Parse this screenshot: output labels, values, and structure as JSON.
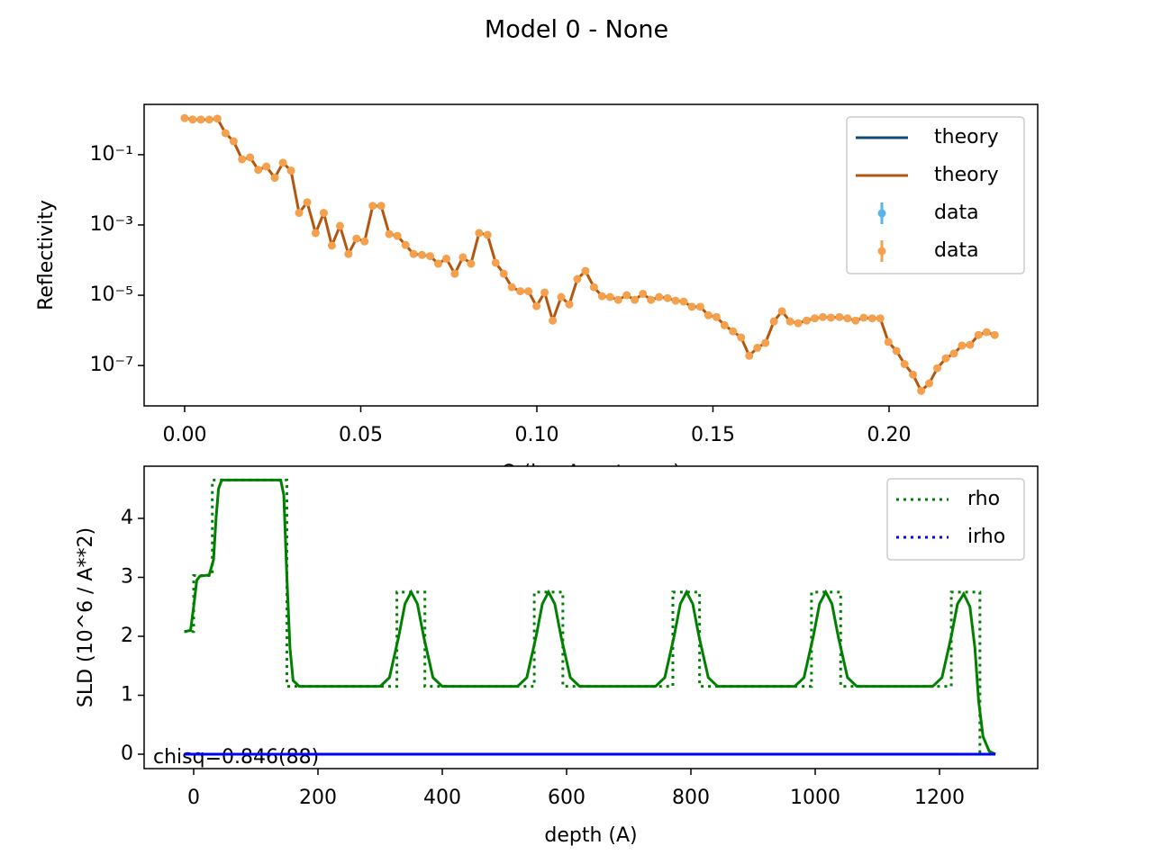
{
  "title": "Model 0 - None",
  "chart_data": [
    {
      "type": "reflectivity",
      "xlabel": "Q (inv Angstroms)",
      "ylabel": "Reflectivity",
      "log_y": true,
      "xlim": [
        -0.0115,
        0.2422
      ],
      "ylim": [
        2.7,
        7.1e-09
      ],
      "xticks": [
        {
          "value": 0,
          "label": "0.00"
        },
        0.05,
        {
          "value": 0.1,
          "label": "0.10"
        },
        0.15,
        {
          "value": 0.2,
          "label": "0.20"
        }
      ],
      "yticks": [
        {
          "value": 0.1,
          "label": "10⁻¹"
        },
        {
          "value": 0.001,
          "label": "10⁻³"
        },
        {
          "value": 1e-05,
          "label": "10⁻⁵"
        },
        {
          "value": 1e-07,
          "label": "10⁻⁷"
        }
      ],
      "line_color": "#b5560e",
      "marker_color": "#f5a04d",
      "x": [
        0,
        0.0023,
        0.0046,
        0.007,
        0.0093,
        0.0116,
        0.0139,
        0.0163,
        0.0186,
        0.0209,
        0.0232,
        0.0256,
        0.0279,
        0.0302,
        0.0325,
        0.0348,
        0.0372,
        0.0395,
        0.0418,
        0.0441,
        0.0465,
        0.0488,
        0.0511,
        0.0534,
        0.0558,
        0.0581,
        0.0604,
        0.0627,
        0.065,
        0.0674,
        0.0697,
        0.072,
        0.0743,
        0.0767,
        0.079,
        0.0813,
        0.0836,
        0.086,
        0.0883,
        0.0906,
        0.0929,
        0.0953,
        0.0976,
        0.0999,
        0.1022,
        0.1045,
        0.1069,
        0.1092,
        0.1115,
        0.1138,
        0.1162,
        0.1185,
        0.1208,
        0.1231,
        0.1255,
        0.1278,
        0.1301,
        0.1324,
        0.1347,
        0.1371,
        0.1394,
        0.1417,
        0.144,
        0.1464,
        0.1487,
        0.151,
        0.1533,
        0.1557,
        0.158,
        0.1603,
        0.1626,
        0.1649,
        0.1673,
        0.1696,
        0.1719,
        0.1742,
        0.1766,
        0.1789,
        0.1812,
        0.1835,
        0.1859,
        0.1882,
        0.1905,
        0.1928,
        0.1952,
        0.1975,
        0.1998,
        0.2021,
        0.2044,
        0.2068,
        0.2091,
        0.2114,
        0.2137,
        0.2161,
        0.2184,
        0.2207,
        0.223,
        0.2254,
        0.2277,
        0.23
      ],
      "values": [
        1.1,
        1.0,
        1.0,
        1.0,
        1.06,
        0.41,
        0.24,
        0.074,
        0.084,
        0.037,
        0.046,
        0.022,
        0.059,
        0.035,
        0.0022,
        0.0044,
        0.00059,
        0.0022,
        0.00026,
        0.00094,
        0.00015,
        0.00041,
        0.00034,
        0.0035,
        0.0035,
        0.00055,
        0.00049,
        0.00027,
        0.00015,
        0.00014,
        0.00013,
        7.9e-05,
        0.00011,
        4.1e-05,
        0.00012,
        7.9e-05,
        0.00059,
        0.00052,
        8.4e-05,
        4.1e-05,
        1.7e-05,
        1.3e-05,
        1.3e-05,
        4.9e-06,
        1.2e-05,
        1.9e-06,
        8.9e-06,
        5.5e-06,
        2.9e-05,
        4.9e-05,
        1.7e-05,
        9.4e-06,
        8.9e-06,
        7.4e-06,
        1e-05,
        7.4e-06,
        1.1e-05,
        7.4e-06,
        8.9e-06,
        8.3e-06,
        7e-06,
        6.6e-06,
        4.7e-06,
        4.7e-06,
        2.7e-06,
        2.4e-06,
        1.4e-06,
        9.4e-07,
        6.3e-07,
        1.9e-07,
        3.2e-07,
        4.4e-07,
        1.8e-06,
        3.5e-06,
        1.8e-06,
        1.6e-06,
        1.9e-06,
        2.2e-06,
        2.4e-06,
        2.3e-06,
        2.4e-06,
        2.2e-06,
        1.9e-06,
        2.3e-06,
        2.2e-06,
        2.2e-06,
        4.7e-07,
        2.6e-07,
        1.1e-07,
        5.5e-08,
        1.9e-08,
        3.1e-08,
        8.4e-08,
        1.6e-07,
        2.2e-07,
        3.7e-07,
        3.9e-07,
        7.4e-07,
        8.9e-07,
        7.4e-07
      ],
      "legend": {
        "loc": "upper right",
        "entries": [
          {
            "name": "theory",
            "color": "#0e4a75",
            "style": "line"
          },
          {
            "name": "theory",
            "color": "#b5560e",
            "style": "line"
          },
          {
            "name": "data",
            "color": "#5ab4ec",
            "style": "marker"
          },
          {
            "name": "data",
            "color": "#f5a04d",
            "style": "marker"
          }
        ]
      }
    },
    {
      "type": "profile",
      "xlabel": "depth (A)",
      "ylabel": "SLD (10^6 / A**2)",
      "xlim": [
        -79.7,
        1358
      ],
      "ylim": [
        -0.244,
        4.885
      ],
      "xticks": [
        0,
        200,
        400,
        600,
        800,
        1000,
        1200
      ],
      "yticks": [
        0,
        1,
        2,
        3,
        4
      ],
      "annotation": "chisq=0.846(88)",
      "curves": [
        {
          "color": "#008000",
          "dash": "dotted",
          "x": [
            -15,
            0,
            0,
            30,
            30,
            150,
            150,
            327,
            327,
            372,
            372,
            548,
            548,
            594,
            594,
            771,
            771,
            814,
            814,
            994,
            994,
            1041,
            1041,
            1219,
            1219,
            1265,
            1265,
            1290
          ],
          "values": [
            2.08,
            2.08,
            3.03,
            3.03,
            4.65,
            4.65,
            1.15,
            1.15,
            2.75,
            2.75,
            1.15,
            1.15,
            2.75,
            2.75,
            1.15,
            1.15,
            2.75,
            2.75,
            1.15,
            1.15,
            2.75,
            2.75,
            1.15,
            1.15,
            2.75,
            2.75,
            0,
            0
          ]
        },
        {
          "color": "#008000",
          "dash": "solid",
          "x": [
            -15,
            -5,
            0,
            5,
            10,
            25,
            32,
            36,
            40,
            45,
            140,
            145,
            150,
            155,
            160,
            170,
            300,
            315,
            330,
            340,
            350,
            360,
            370,
            385,
            400,
            521,
            536,
            551,
            561,
            571,
            581,
            591,
            606,
            621,
            743,
            758,
            773,
            783,
            793,
            803,
            813,
            828,
            843,
            967,
            982,
            997,
            1007,
            1017,
            1027,
            1037,
            1052,
            1067,
            1189,
            1204,
            1219,
            1229,
            1239,
            1249,
            1257,
            1263,
            1270,
            1280,
            1290
          ],
          "values": [
            2.08,
            2.1,
            2.5,
            2.95,
            3.02,
            3.04,
            3.3,
            4.0,
            4.5,
            4.65,
            4.65,
            4.4,
            3.0,
            1.8,
            1.25,
            1.15,
            1.15,
            1.3,
            2.0,
            2.55,
            2.75,
            2.55,
            2.0,
            1.3,
            1.15,
            1.15,
            1.3,
            2.0,
            2.55,
            2.75,
            2.55,
            2.0,
            1.3,
            1.15,
            1.15,
            1.3,
            2.0,
            2.55,
            2.75,
            2.55,
            2.0,
            1.3,
            1.15,
            1.15,
            1.3,
            2.0,
            2.55,
            2.75,
            2.55,
            2.0,
            1.3,
            1.15,
            1.15,
            1.3,
            2.0,
            2.55,
            2.72,
            2.5,
            1.8,
            0.9,
            0.3,
            0.05,
            0
          ]
        },
        {
          "color": "#0000ff",
          "dash": "solid",
          "x": [
            -15,
            1290
          ],
          "values": [
            0,
            0
          ]
        }
      ],
      "legend": {
        "loc": "upper right",
        "entries": [
          {
            "name": "rho",
            "color": "#008000",
            "style": "dotted"
          },
          {
            "name": "irho",
            "color": "#0000ff",
            "style": "dotted"
          }
        ]
      }
    }
  ]
}
